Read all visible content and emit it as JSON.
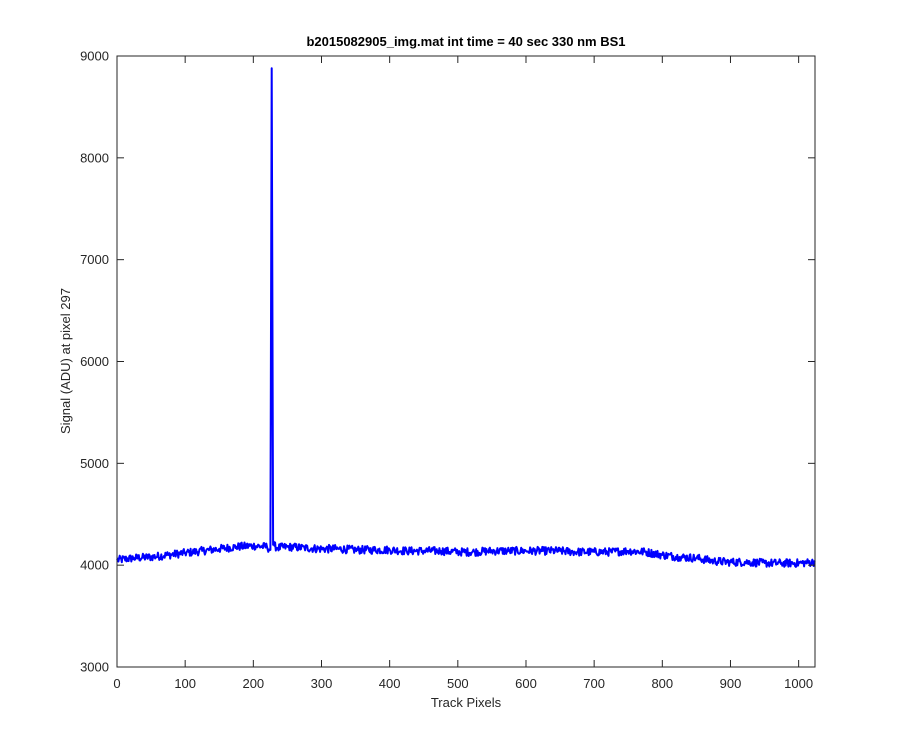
{
  "chart_data": {
    "type": "line",
    "title": "b2015082905_img.mat int time = 40 sec  330 nm BS1",
    "xlabel": "Track Pixels",
    "ylabel": "Signal (ADU) at pixel 297",
    "xlim": [
      0,
      1024
    ],
    "ylim": [
      3000,
      9000
    ],
    "xticks": [
      0,
      100,
      200,
      300,
      400,
      500,
      600,
      700,
      800,
      900,
      1000
    ],
    "yticks": [
      3000,
      4000,
      5000,
      6000,
      7000,
      8000,
      9000
    ],
    "xtick_labels": [
      "0",
      "100",
      "200",
      "300",
      "400",
      "500",
      "600",
      "700",
      "800",
      "900",
      "1000"
    ],
    "ytick_labels": [
      "3000",
      "4000",
      "5000",
      "6000",
      "7000",
      "8000",
      "9000"
    ],
    "grid": false,
    "legend": "none",
    "series": [
      {
        "color": "#0000ff",
        "x": [
          0,
          25,
          50,
          75,
          100,
          125,
          150,
          175,
          200,
          220,
          225,
          227,
          229,
          231,
          235,
          250,
          275,
          300,
          325,
          350,
          375,
          400,
          425,
          450,
          475,
          500,
          525,
          550,
          575,
          600,
          625,
          650,
          675,
          700,
          725,
          750,
          775,
          800,
          825,
          850,
          875,
          900,
          925,
          950,
          975,
          1000,
          1024
        ],
        "y": [
          4050,
          4070,
          4080,
          4100,
          4120,
          4140,
          4160,
          4180,
          4190,
          4180,
          4150,
          8880,
          4200,
          4190,
          4170,
          4180,
          4170,
          4160,
          4160,
          4150,
          4150,
          4150,
          4140,
          4140,
          4140,
          4130,
          4130,
          4140,
          4140,
          4140,
          4140,
          4140,
          4130,
          4130,
          4130,
          4140,
          4130,
          4100,
          4080,
          4070,
          4040,
          4030,
          4030,
          4020,
          4020,
          4020,
          4030
        ],
        "noise_amplitude": 40
      }
    ]
  }
}
